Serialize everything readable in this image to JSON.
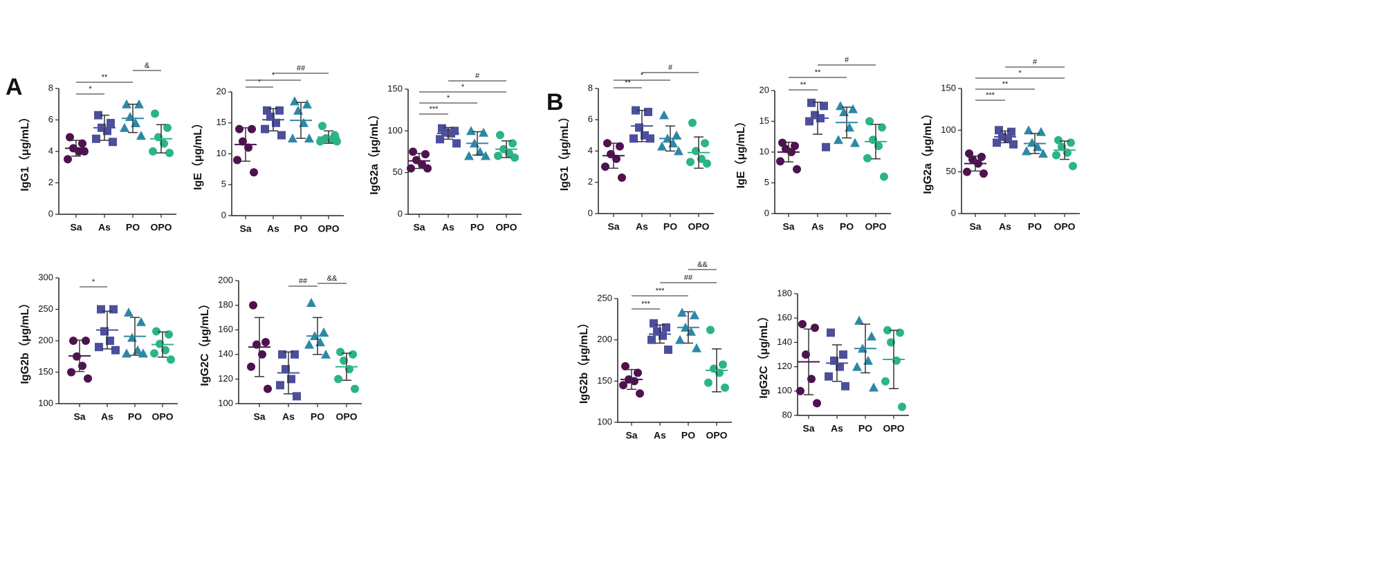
{
  "panel_labels": [
    "A",
    "B"
  ],
  "chart_data": [
    {
      "type": "dot",
      "ylabel": "IgG1（μg/mL）",
      "categories": [
        "Sa",
        "As",
        "PO",
        "OPO"
      ],
      "colors": [
        "#4e1250",
        "#4c4f9c",
        "#2d88a5",
        "#2cb489"
      ],
      "markers": [
        "circle",
        "square",
        "triangle",
        "circle"
      ],
      "points": [
        [
          4.9,
          4.5,
          4.2,
          4.0,
          3.5,
          4.0
        ],
        [
          6.3,
          5.8,
          5.5,
          5.3,
          4.8,
          4.6
        ],
        [
          7.0,
          7.0,
          6.2,
          5.8,
          5.5,
          5.0
        ],
        [
          6.4,
          5.5,
          4.9,
          4.5,
          4.0,
          3.9
        ]
      ],
      "means": [
        4.2,
        5.5,
        6.1,
        4.8
      ],
      "sds": [
        0.5,
        0.8,
        0.9,
        0.9
      ],
      "ylim": [
        0,
        8
      ],
      "yticks": [
        0,
        2,
        4,
        6,
        8
      ],
      "comparisons": [
        {
          "from": 0,
          "to": 1,
          "label": "*"
        },
        {
          "from": 0,
          "to": 2,
          "label": "**"
        },
        {
          "from": 2,
          "to": 3,
          "label": "&"
        }
      ]
    },
    {
      "type": "dot",
      "ylabel": "IgE（μg/mL）",
      "categories": [
        "Sa",
        "As",
        "PO",
        "OPO"
      ],
      "colors": [
        "#4e1250",
        "#4c4f9c",
        "#2d88a5",
        "#2cb489"
      ],
      "markers": [
        "circle",
        "square",
        "triangle",
        "circle"
      ],
      "points": [
        [
          14,
          14,
          12,
          11,
          9,
          7
        ],
        [
          17,
          17,
          16,
          15,
          14,
          13
        ],
        [
          18.5,
          18,
          17,
          15,
          12.5,
          12.5
        ],
        [
          14.5,
          13,
          12.5,
          12.3,
          12,
          12
        ]
      ],
      "means": [
        11.5,
        15.5,
        15.4,
        12.7
      ],
      "sds": [
        2.7,
        1.8,
        2.9,
        1.0
      ],
      "ylim": [
        0,
        20
      ],
      "yticks": [
        0,
        5,
        10,
        15,
        20
      ],
      "comparisons": [
        {
          "from": 0,
          "to": 1,
          "label": "*"
        },
        {
          "from": 0,
          "to": 2,
          "label": "*"
        },
        {
          "from": 1,
          "to": 3,
          "label": "##"
        }
      ]
    },
    {
      "type": "dot",
      "ylabel": "IgG2a（μg/mL）",
      "categories": [
        "Sa",
        "As",
        "PO",
        "OPO"
      ],
      "colors": [
        "#4e1250",
        "#4c4f9c",
        "#2d88a5",
        "#2cb489"
      ],
      "markers": [
        "circle",
        "square",
        "triangle",
        "circle"
      ],
      "points": [
        [
          75,
          72,
          65,
          60,
          55,
          55
        ],
        [
          103,
          100,
          98,
          97,
          90,
          85
        ],
        [
          100,
          98,
          85,
          75,
          70,
          70
        ],
        [
          95,
          85,
          78,
          73,
          70,
          68
        ]
      ],
      "means": [
        64,
        97,
        85,
        78
      ],
      "sds": [
        9,
        7,
        14,
        10
      ],
      "ylim": [
        0,
        150
      ],
      "yticks": [
        0,
        50,
        100,
        150
      ],
      "comparisons": [
        {
          "from": 0,
          "to": 1,
          "label": "***"
        },
        {
          "from": 0,
          "to": 2,
          "label": "*"
        },
        {
          "from": 0,
          "to": 3,
          "label": "*"
        },
        {
          "from": 1,
          "to": 3,
          "label": "#"
        }
      ]
    },
    {
      "type": "dot",
      "ylabel": "IgG1（μg/mL）",
      "categories": [
        "Sa",
        "As",
        "PO",
        "OPO"
      ],
      "colors": [
        "#4e1250",
        "#4c4f9c",
        "#2d88a5",
        "#2cb489"
      ],
      "markers": [
        "circle",
        "square",
        "triangle",
        "circle"
      ],
      "points": [
        [
          4.5,
          4.3,
          3.8,
          3.5,
          3.0,
          2.3
        ],
        [
          6.6,
          6.5,
          5.5,
          5.0,
          4.8,
          4.8
        ],
        [
          6.3,
          5.0,
          4.8,
          4.5,
          4.3,
          4.0
        ],
        [
          5.8,
          4.5,
          4.0,
          3.5,
          3.3,
          3.2
        ]
      ],
      "means": [
        3.7,
        5.6,
        4.8,
        3.9
      ],
      "sds": [
        0.8,
        1.0,
        0.8,
        1.0
      ],
      "ylim": [
        0,
        8
      ],
      "yticks": [
        0,
        2,
        4,
        6,
        8
      ],
      "comparisons": [
        {
          "from": 0,
          "to": 1,
          "label": "**"
        },
        {
          "from": 0,
          "to": 2,
          "label": "*"
        },
        {
          "from": 1,
          "to": 3,
          "label": "#"
        }
      ]
    },
    {
      "type": "dot",
      "ylabel": "IgE（μg/mL）",
      "categories": [
        "Sa",
        "As",
        "PO",
        "OPO"
      ],
      "colors": [
        "#4e1250",
        "#4c4f9c",
        "#2d88a5",
        "#2cb489"
      ],
      "markers": [
        "circle",
        "square",
        "triangle",
        "circle"
      ],
      "points": [
        [
          11.5,
          11,
          10.5,
          10,
          8.5,
          7.2
        ],
        [
          18,
          17.5,
          16,
          15.5,
          15,
          10.8
        ],
        [
          17.5,
          17,
          16.5,
          14,
          12,
          11.5
        ],
        [
          15,
          14,
          12,
          11,
          9,
          6
        ]
      ],
      "means": [
        10,
        15.5,
        14.8,
        11.7
      ],
      "sds": [
        1.6,
        2.6,
        2.5,
        2.8
      ],
      "ylim": [
        0,
        20
      ],
      "yticks": [
        0,
        5,
        10,
        15,
        20
      ],
      "comparisons": [
        {
          "from": 0,
          "to": 1,
          "label": "**"
        },
        {
          "from": 0,
          "to": 2,
          "label": "**"
        },
        {
          "from": 1,
          "to": 3,
          "label": "#"
        }
      ]
    },
    {
      "type": "dot",
      "ylabel": "IgG2a（μg/mL）",
      "categories": [
        "Sa",
        "As",
        "PO",
        "OPO"
      ],
      "colors": [
        "#4e1250",
        "#4c4f9c",
        "#2d88a5",
        "#2cb489"
      ],
      "markers": [
        "circle",
        "square",
        "triangle",
        "circle"
      ],
      "points": [
        [
          72,
          68,
          65,
          60,
          50,
          48
        ],
        [
          100,
          98,
          92,
          90,
          85,
          83
        ],
        [
          100,
          98,
          85,
          80,
          75,
          72
        ],
        [
          88,
          85,
          80,
          73,
          70,
          57
        ]
      ],
      "means": [
        60,
        92,
        84,
        76
      ],
      "sds": [
        9,
        7,
        12,
        11
      ],
      "ylim": [
        0,
        150
      ],
      "yticks": [
        0,
        50,
        100,
        150
      ],
      "comparisons": [
        {
          "from": 0,
          "to": 1,
          "label": "***"
        },
        {
          "from": 0,
          "to": 2,
          "label": "**"
        },
        {
          "from": 0,
          "to": 3,
          "label": "*"
        },
        {
          "from": 1,
          "to": 3,
          "label": "#"
        }
      ]
    },
    {
      "type": "dot",
      "ylabel": "IgG2b（μg/mL）",
      "categories": [
        "Sa",
        "As",
        "PO",
        "OPO"
      ],
      "colors": [
        "#4e1250",
        "#4c4f9c",
        "#2d88a5",
        "#2cb489"
      ],
      "markers": [
        "circle",
        "square",
        "triangle",
        "circle"
      ],
      "points": [
        [
          200,
          200,
          175,
          160,
          150,
          140
        ],
        [
          250,
          250,
          215,
          200,
          190,
          185
        ],
        [
          245,
          230,
          205,
          185,
          180,
          180
        ],
        [
          215,
          210,
          195,
          185,
          180,
          170
        ]
      ],
      "means": [
        176,
        217,
        207,
        194
      ],
      "sds": [
        25,
        30,
        30,
        20
      ],
      "ylim": [
        100,
        300
      ],
      "yticks": [
        100,
        150,
        200,
        250,
        300
      ],
      "comparisons": [
        {
          "from": 0,
          "to": 1,
          "label": "*"
        }
      ]
    },
    {
      "type": "dot",
      "ylabel": "IgG2C（μg/mL）",
      "categories": [
        "Sa",
        "As",
        "PO",
        "OPO"
      ],
      "colors": [
        "#4e1250",
        "#4c4f9c",
        "#2d88a5",
        "#2cb489"
      ],
      "markers": [
        "circle",
        "square",
        "triangle",
        "circle"
      ],
      "points": [
        [
          180,
          150,
          148,
          140,
          130,
          112
        ],
        [
          140,
          140,
          128,
          120,
          115,
          106
        ],
        [
          182,
          158,
          155,
          150,
          148,
          140
        ],
        [
          142,
          140,
          135,
          128,
          120,
          112
        ]
      ],
      "means": [
        146,
        125,
        155,
        130
      ],
      "sds": [
        24,
        17,
        15,
        11
      ],
      "ylim": [
        100,
        200
      ],
      "yticks": [
        100,
        120,
        140,
        160,
        180,
        200
      ],
      "comparisons": [
        {
          "from": 1,
          "to": 2,
          "label": "##"
        },
        {
          "from": 2,
          "to": 3,
          "label": "&&"
        }
      ]
    },
    {
      "type": "dot",
      "ylabel": "IgG2b（μg/mL）",
      "categories": [
        "Sa",
        "As",
        "PO",
        "OPO"
      ],
      "colors": [
        "#4e1250",
        "#4c4f9c",
        "#2d88a5",
        "#2cb489"
      ],
      "markers": [
        "circle",
        "square",
        "triangle",
        "circle"
      ],
      "points": [
        [
          168,
          160,
          152,
          150,
          145,
          135
        ],
        [
          220,
          215,
          210,
          205,
          200,
          188
        ],
        [
          233,
          230,
          215,
          210,
          200,
          190
        ],
        [
          212,
          170,
          165,
          160,
          148,
          142
        ]
      ],
      "means": [
        152,
        207,
        215,
        163
      ],
      "sds": [
        12,
        11,
        19,
        26
      ],
      "ylim": [
        100,
        250
      ],
      "yticks": [
        100,
        150,
        200,
        250
      ],
      "comparisons": [
        {
          "from": 0,
          "to": 1,
          "label": "***"
        },
        {
          "from": 0,
          "to": 2,
          "label": "***"
        },
        {
          "from": 1,
          "to": 3,
          "label": "##"
        },
        {
          "from": 2,
          "to": 3,
          "label": "&&"
        }
      ]
    },
    {
      "type": "dot",
      "ylabel": "IgG2C（μg/mL）",
      "categories": [
        "Sa",
        "As",
        "PO",
        "OPO"
      ],
      "colors": [
        "#4e1250",
        "#4c4f9c",
        "#2d88a5",
        "#2cb489"
      ],
      "markers": [
        "circle",
        "square",
        "triangle",
        "circle"
      ],
      "points": [
        [
          155,
          152,
          130,
          110,
          100,
          90
        ],
        [
          148,
          130,
          125,
          120,
          112,
          104
        ],
        [
          158,
          145,
          135,
          125,
          120,
          103
        ],
        [
          150,
          148,
          140,
          125,
          108,
          87
        ]
      ],
      "means": [
        124,
        123,
        135,
        126
      ],
      "sds": [
        27,
        15,
        20,
        24
      ],
      "ylim": [
        80,
        180
      ],
      "yticks": [
        80,
        100,
        120,
        140,
        160,
        180
      ],
      "comparisons": []
    }
  ]
}
